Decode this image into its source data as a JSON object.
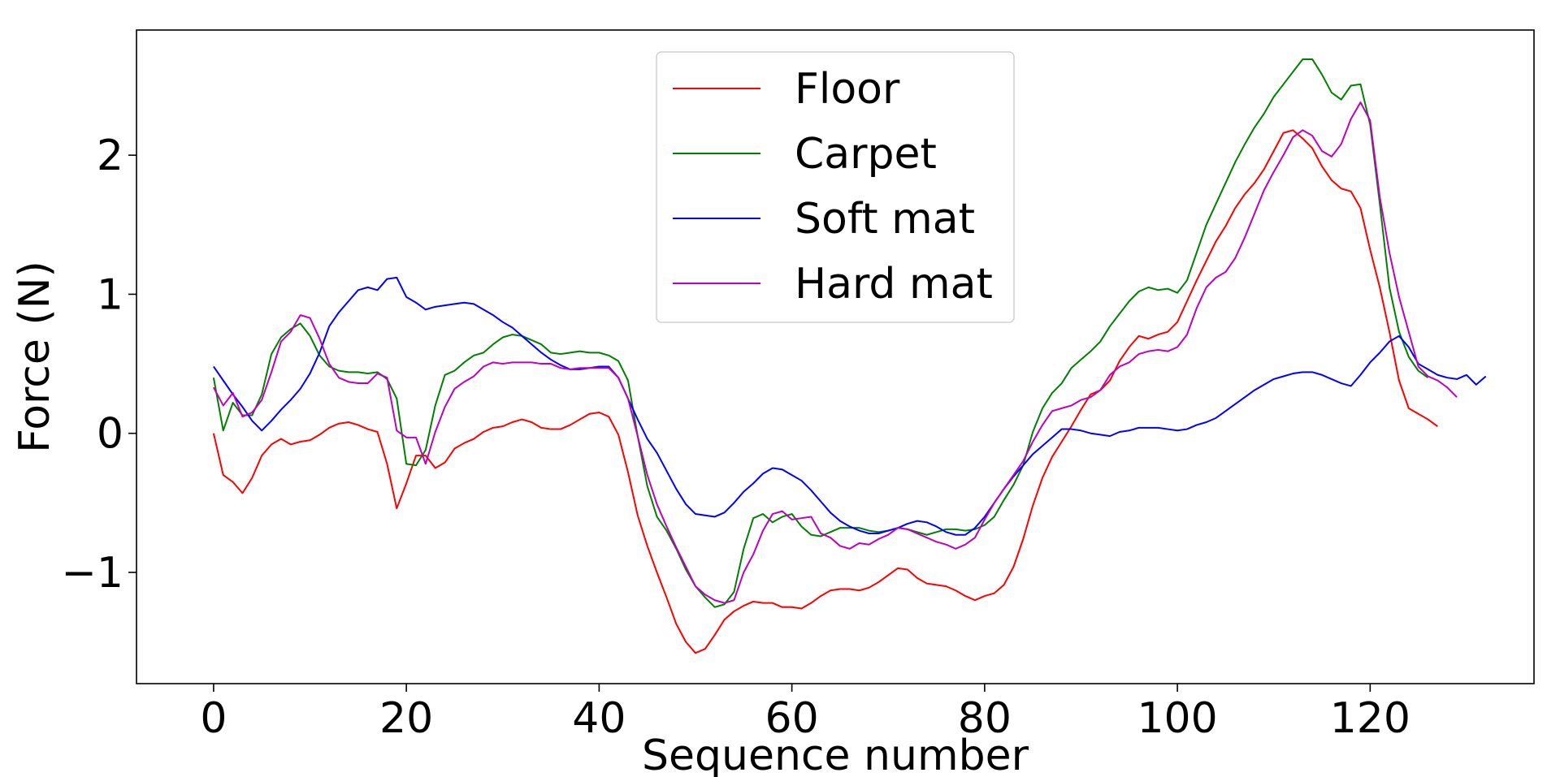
{
  "chart_data": {
    "type": "line",
    "title": "",
    "xlabel": "Sequence number",
    "ylabel": "Force (N)",
    "xlim": [
      -8,
      137
    ],
    "ylim": [
      -1.8,
      2.9
    ],
    "xticks": [
      0,
      20,
      40,
      60,
      80,
      100,
      120
    ],
    "yticks": [
      -1,
      0,
      1,
      2
    ],
    "ytick_labels": [
      "−1",
      "0",
      "1",
      "2"
    ],
    "grid": false,
    "legend_position": "top-center",
    "series": [
      {
        "name": "Floor",
        "color": "#ff0000",
        "x_start": 0,
        "values": [
          0.0,
          -0.3,
          -0.35,
          -0.43,
          -0.32,
          -0.16,
          -0.08,
          -0.04,
          -0.08,
          -0.06,
          -0.05,
          -0.01,
          0.04,
          0.07,
          0.08,
          0.06,
          0.03,
          0.01,
          -0.22,
          -0.54,
          -0.36,
          -0.16,
          -0.16,
          -0.25,
          -0.21,
          -0.11,
          -0.07,
          -0.04,
          0.01,
          0.04,
          0.05,
          0.08,
          0.1,
          0.08,
          0.04,
          0.03,
          0.03,
          0.06,
          0.1,
          0.14,
          0.15,
          0.12,
          -0.01,
          -0.28,
          -0.59,
          -0.81,
          -1.0,
          -1.18,
          -1.37,
          -1.5,
          -1.58,
          -1.55,
          -1.45,
          -1.34,
          -1.28,
          -1.24,
          -1.21,
          -1.22,
          -1.22,
          -1.25,
          -1.25,
          -1.26,
          -1.22,
          -1.17,
          -1.13,
          -1.12,
          -1.12,
          -1.13,
          -1.11,
          -1.07,
          -1.02,
          -0.97,
          -0.98,
          -1.04,
          -1.08,
          -1.09,
          -1.1,
          -1.13,
          -1.17,
          -1.2,
          -1.17,
          -1.15,
          -1.09,
          -0.96,
          -0.76,
          -0.52,
          -0.32,
          -0.17,
          -0.06,
          0.05,
          0.17,
          0.28,
          0.31,
          0.38,
          0.52,
          0.62,
          0.7,
          0.68,
          0.71,
          0.73,
          0.8,
          0.95,
          1.1,
          1.24,
          1.38,
          1.49,
          1.62,
          1.72,
          1.8,
          1.9,
          2.03,
          2.16,
          2.18,
          2.12,
          2.05,
          1.92,
          1.82,
          1.76,
          1.74,
          1.62,
          1.32,
          1.05,
          0.73,
          0.38,
          0.18,
          0.14,
          0.1,
          0.05
        ]
      },
      {
        "name": "Carpet",
        "color": "#008000",
        "x_start": 0,
        "values": [
          0.4,
          0.02,
          0.22,
          0.13,
          0.13,
          0.28,
          0.57,
          0.69,
          0.75,
          0.79,
          0.7,
          0.56,
          0.48,
          0.45,
          0.44,
          0.44,
          0.43,
          0.44,
          0.39,
          0.25,
          -0.22,
          -0.23,
          -0.12,
          0.2,
          0.42,
          0.45,
          0.51,
          0.56,
          0.58,
          0.64,
          0.69,
          0.71,
          0.7,
          0.67,
          0.64,
          0.58,
          0.57,
          0.58,
          0.59,
          0.58,
          0.58,
          0.56,
          0.52,
          0.38,
          -0.02,
          -0.38,
          -0.6,
          -0.7,
          -0.83,
          -0.98,
          -1.1,
          -1.18,
          -1.25,
          -1.23,
          -1.14,
          -0.83,
          -0.61,
          -0.58,
          -0.64,
          -0.6,
          -0.58,
          -0.67,
          -0.73,
          -0.74,
          -0.71,
          -0.68,
          -0.68,
          -0.68,
          -0.7,
          -0.71,
          -0.7,
          -0.68,
          -0.69,
          -0.71,
          -0.73,
          -0.71,
          -0.69,
          -0.69,
          -0.7,
          -0.69,
          -0.66,
          -0.6,
          -0.48,
          -0.37,
          -0.23,
          0.01,
          0.18,
          0.29,
          0.36,
          0.47,
          0.53,
          0.59,
          0.66,
          0.77,
          0.86,
          0.95,
          1.02,
          1.05,
          1.03,
          1.04,
          1.01,
          1.1,
          1.3,
          1.5,
          1.65,
          1.8,
          1.95,
          2.08,
          2.2,
          2.3,
          2.42,
          2.51,
          2.6,
          2.69,
          2.69,
          2.58,
          2.45,
          2.4,
          2.5,
          2.51,
          2.22,
          1.65,
          1.05,
          0.73,
          0.55,
          0.45,
          0.4
        ]
      },
      {
        "name": "Soft mat",
        "color": "#0000ff",
        "x_start": 0,
        "values": [
          0.48,
          0.38,
          0.28,
          0.19,
          0.09,
          0.02,
          0.09,
          0.17,
          0.24,
          0.32,
          0.43,
          0.58,
          0.77,
          0.87,
          0.95,
          1.03,
          1.05,
          1.03,
          1.11,
          1.12,
          0.98,
          0.94,
          0.89,
          0.91,
          0.92,
          0.93,
          0.94,
          0.93,
          0.89,
          0.85,
          0.8,
          0.76,
          0.7,
          0.64,
          0.58,
          0.53,
          0.49,
          0.46,
          0.46,
          0.47,
          0.48,
          0.48,
          0.4,
          0.25,
          0.1,
          -0.04,
          -0.14,
          -0.27,
          -0.4,
          -0.51,
          -0.58,
          -0.59,
          -0.6,
          -0.57,
          -0.5,
          -0.42,
          -0.36,
          -0.29,
          -0.25,
          -0.26,
          -0.3,
          -0.34,
          -0.41,
          -0.49,
          -0.57,
          -0.63,
          -0.67,
          -0.7,
          -0.72,
          -0.72,
          -0.7,
          -0.68,
          -0.65,
          -0.63,
          -0.64,
          -0.67,
          -0.71,
          -0.73,
          -0.73,
          -0.68,
          -0.6,
          -0.5,
          -0.4,
          -0.31,
          -0.23,
          -0.15,
          -0.09,
          -0.03,
          0.03,
          0.03,
          0.02,
          0.0,
          -0.01,
          -0.02,
          0.01,
          0.02,
          0.04,
          0.04,
          0.04,
          0.03,
          0.02,
          0.03,
          0.06,
          0.08,
          0.11,
          0.16,
          0.21,
          0.26,
          0.31,
          0.35,
          0.39,
          0.41,
          0.43,
          0.44,
          0.44,
          0.42,
          0.39,
          0.36,
          0.34,
          0.42,
          0.51,
          0.58,
          0.66,
          0.7,
          0.62,
          0.5,
          0.46,
          0.42,
          0.4,
          0.39,
          0.42,
          0.35,
          0.41
        ]
      },
      {
        "name": "Hard mat",
        "color": "#bf00bf",
        "x_start": 0,
        "values": [
          0.33,
          0.2,
          0.29,
          0.12,
          0.15,
          0.24,
          0.44,
          0.66,
          0.73,
          0.85,
          0.83,
          0.68,
          0.5,
          0.4,
          0.37,
          0.36,
          0.36,
          0.43,
          0.4,
          0.02,
          -0.03,
          -0.03,
          -0.22,
          0.01,
          0.19,
          0.32,
          0.37,
          0.41,
          0.48,
          0.51,
          0.5,
          0.51,
          0.51,
          0.51,
          0.5,
          0.5,
          0.47,
          0.46,
          0.47,
          0.47,
          0.47,
          0.47,
          0.4,
          0.25,
          -0.02,
          -0.3,
          -0.51,
          -0.67,
          -0.82,
          -0.96,
          -1.1,
          -1.16,
          -1.2,
          -1.22,
          -1.2,
          -1.0,
          -0.87,
          -0.7,
          -0.58,
          -0.56,
          -0.62,
          -0.61,
          -0.6,
          -0.72,
          -0.75,
          -0.81,
          -0.83,
          -0.79,
          -0.8,
          -0.76,
          -0.73,
          -0.68,
          -0.69,
          -0.72,
          -0.75,
          -0.78,
          -0.8,
          -0.83,
          -0.8,
          -0.75,
          -0.62,
          -0.5,
          -0.4,
          -0.3,
          -0.2,
          -0.06,
          0.06,
          0.16,
          0.18,
          0.2,
          0.24,
          0.26,
          0.31,
          0.42,
          0.48,
          0.51,
          0.57,
          0.59,
          0.6,
          0.59,
          0.62,
          0.71,
          0.9,
          1.05,
          1.12,
          1.16,
          1.26,
          1.41,
          1.58,
          1.75,
          1.88,
          2.0,
          2.13,
          2.18,
          2.14,
          2.03,
          1.99,
          2.08,
          2.26,
          2.38,
          2.25,
          1.7,
          1.3,
          0.98,
          0.73,
          0.48,
          0.41,
          0.38,
          0.33,
          0.26
        ]
      }
    ]
  }
}
